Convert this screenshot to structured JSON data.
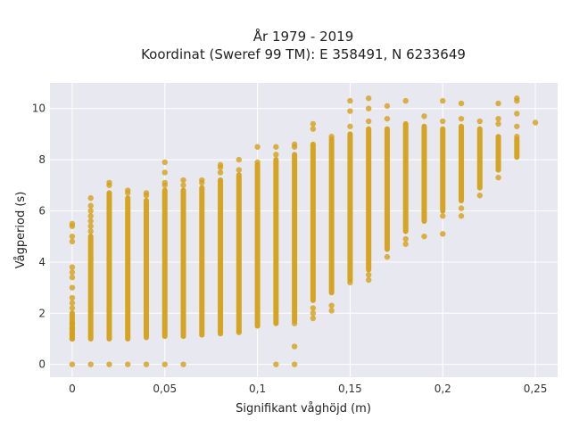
{
  "chart_data": {
    "type": "scatter",
    "title_line1": "År 1979 - 2019",
    "title_line2": "Koordinat (Sweref 99 TM): E 358491, N 6233649",
    "xlabel": "Signifikant våghöjd (m)",
    "ylabel": "Vågperiod (s)",
    "xlim": [
      -0.012,
      0.262
    ],
    "ylim": [
      -0.5,
      11
    ],
    "x_ticks": [
      0,
      0.05,
      0.1,
      0.15,
      0.2,
      0.25
    ],
    "x_tick_labels": [
      "0",
      "0,05",
      "0,1",
      "0,15",
      "0,2",
      "0,25"
    ],
    "y_ticks": [
      0,
      2,
      4,
      6,
      8,
      10
    ],
    "y_tick_labels": [
      "0",
      "2",
      "4",
      "6",
      "8",
      "10"
    ],
    "grid": true,
    "marker_color": "#d4a017",
    "plot_background": "#e8e8f0",
    "columns": [
      {
        "x": 0.0,
        "y_min": 1.0,
        "y_max": 2.0,
        "outliers": [
          0,
          1.0,
          1.2,
          1.4,
          1.6,
          2.2,
          2.4,
          2.6,
          3.0,
          3.4,
          3.6,
          3.8,
          4.8,
          5.0,
          5.4,
          5.5
        ]
      },
      {
        "x": 0.01,
        "y_min": 1.0,
        "y_max": 5.0,
        "outliers": [
          0,
          5.2,
          5.4,
          5.6,
          5.8,
          6.0,
          6.2,
          6.5
        ]
      },
      {
        "x": 0.02,
        "y_min": 1.0,
        "y_max": 6.7,
        "outliers": [
          0,
          7.0,
          7.1
        ]
      },
      {
        "x": 0.03,
        "y_min": 1.0,
        "y_max": 6.5,
        "outliers": [
          0,
          6.7,
          6.8
        ]
      },
      {
        "x": 0.04,
        "y_min": 1.05,
        "y_max": 6.4,
        "outliers": [
          0,
          6.6,
          6.7
        ]
      },
      {
        "x": 0.05,
        "y_min": 1.1,
        "y_max": 6.8,
        "outliers": [
          0,
          7.0,
          7.1,
          7.5,
          7.9
        ]
      },
      {
        "x": 0.06,
        "y_min": 1.1,
        "y_max": 6.8,
        "outliers": [
          0,
          7.0,
          7.2
        ]
      },
      {
        "x": 0.07,
        "y_min": 1.15,
        "y_max": 6.9,
        "outliers": [
          7.1,
          7.2
        ]
      },
      {
        "x": 0.08,
        "y_min": 1.2,
        "y_max": 7.2,
        "outliers": [
          7.5,
          7.7,
          7.8
        ]
      },
      {
        "x": 0.09,
        "y_min": 1.3,
        "y_max": 7.4,
        "outliers": [
          1.25,
          7.6,
          8.0
        ]
      },
      {
        "x": 0.1,
        "y_min": 1.5,
        "y_max": 7.8,
        "outliers": [
          7.9,
          8.5
        ]
      },
      {
        "x": 0.11,
        "y_min": 1.6,
        "y_max": 8.0,
        "outliers": [
          0,
          8.2,
          8.5
        ]
      },
      {
        "x": 0.12,
        "y_min": 1.7,
        "y_max": 8.2,
        "outliers": [
          0,
          0.7,
          1.6,
          8.5,
          8.6
        ]
      },
      {
        "x": 0.13,
        "y_min": 2.5,
        "y_max": 8.6,
        "outliers": [
          1.8,
          2.0,
          2.2,
          9.2,
          9.4
        ]
      },
      {
        "x": 0.14,
        "y_min": 2.8,
        "y_max": 8.8,
        "outliers": [
          2.1,
          2.3,
          8.9
        ]
      },
      {
        "x": 0.15,
        "y_min": 3.3,
        "y_max": 9.0,
        "outliers": [
          3.2,
          9.3,
          9.9,
          10.3
        ]
      },
      {
        "x": 0.16,
        "y_min": 3.7,
        "y_max": 9.2,
        "outliers": [
          3.3,
          3.5,
          9.5,
          10.0,
          10.4
        ]
      },
      {
        "x": 0.17,
        "y_min": 4.5,
        "y_max": 9.2,
        "outliers": [
          4.2,
          9.6,
          10.1
        ]
      },
      {
        "x": 0.18,
        "y_min": 5.2,
        "y_max": 9.4,
        "outliers": [
          4.7,
          4.9,
          10.3
        ]
      },
      {
        "x": 0.19,
        "y_min": 5.6,
        "y_max": 9.3,
        "outliers": [
          5.0,
          9.7
        ]
      },
      {
        "x": 0.2,
        "y_min": 6.0,
        "y_max": 9.2,
        "outliers": [
          5.1,
          5.8,
          9.5,
          10.3
        ]
      },
      {
        "x": 0.21,
        "y_min": 6.4,
        "y_max": 9.3,
        "outliers": [
          5.8,
          6.1,
          9.6,
          10.2
        ]
      },
      {
        "x": 0.22,
        "y_min": 6.9,
        "y_max": 9.2,
        "outliers": [
          6.6,
          9.5
        ]
      },
      {
        "x": 0.23,
        "y_min": 7.6,
        "y_max": 8.9,
        "outliers": [
          7.3,
          9.4,
          9.6,
          10.2
        ]
      },
      {
        "x": 0.24,
        "y_min": 8.1,
        "y_max": 8.8,
        "outliers": [
          8.9,
          9.3,
          9.8,
          10.3,
          10.4
        ]
      },
      {
        "x": 0.25,
        "y_min": 9.45,
        "y_max": 9.45,
        "outliers": []
      }
    ]
  }
}
